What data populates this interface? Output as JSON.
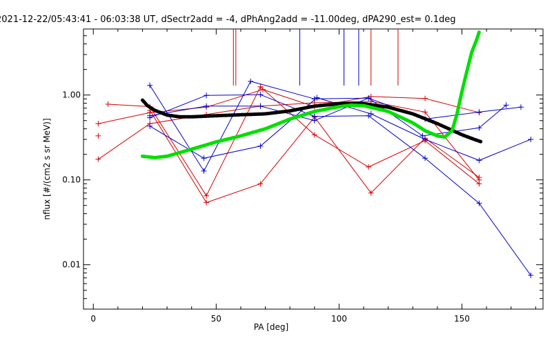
{
  "chart_data": {
    "type": "line",
    "title": "2021-12-22/05:43:41 - 06:03:38 UT, dSectr2add = -4, dPhAng2add = -11.00deg, dPA290_est=   0.1deg",
    "xlabel": "PA [deg]",
    "ylabel": "nflux [#/(cm2 s sr MeV)]",
    "xlim": [
      -4,
      183
    ],
    "ylim": [
      0.003,
      6.0
    ],
    "y_log": true,
    "grid": false,
    "x_ticks": [
      0,
      50,
      100,
      150
    ],
    "x_tick_labels": [
      "0",
      "50",
      "100",
      "150"
    ],
    "y_ticks": [
      0.01,
      0.1,
      1.0
    ],
    "y_tick_labels": [
      "0.01",
      "0.10",
      "1.00"
    ],
    "colors": {
      "red": "#d40000",
      "blue": "#0000cc",
      "black": "#000000",
      "green": "#00e000"
    },
    "markers": [
      {
        "color": "red",
        "x": 57
      },
      {
        "color": "red",
        "x": 58
      },
      {
        "color": "blue",
        "x": 84
      },
      {
        "color": "blue",
        "x": 102
      },
      {
        "color": "blue",
        "x": 108
      },
      {
        "color": "red",
        "x": 113
      },
      {
        "color": "red",
        "x": 124
      }
    ],
    "series": [
      {
        "color": "red",
        "points": [
          [
            2,
            0.46
          ],
          [
            23,
            0.62
          ],
          [
            46,
            0.72
          ],
          [
            69,
            1.16
          ],
          [
            90,
            0.73
          ],
          [
            113,
            0.96
          ],
          [
            135,
            0.91
          ],
          [
            157,
            0.62
          ]
        ]
      },
      {
        "color": "red",
        "points": [
          [
            2,
            0.175
          ],
          [
            23,
            0.46
          ],
          [
            46,
            0.59
          ],
          [
            68,
            0.74
          ],
          [
            90,
            0.81
          ],
          [
            113,
            0.84
          ],
          [
            135,
            0.63
          ],
          [
            157,
            0.1
          ]
        ]
      },
      {
        "color": "red",
        "points": [
          [
            6,
            0.78
          ],
          [
            23,
            0.73
          ],
          [
            46,
            0.065
          ],
          [
            68,
            1.25
          ],
          [
            90,
            0.34
          ],
          [
            112,
            0.142
          ],
          [
            135,
            0.29
          ],
          [
            157,
            0.09
          ]
        ]
      },
      {
        "color": "red",
        "points": [
          [
            23,
            0.66
          ],
          [
            46,
            0.054
          ],
          [
            68,
            0.09
          ],
          [
            90,
            0.55
          ],
          [
            113,
            0.07
          ],
          [
            135,
            0.31
          ],
          [
            157,
            0.107
          ]
        ]
      },
      {
        "color": "red",
        "points": [
          [
            2,
            0.33
          ]
        ]
      },
      {
        "color": "blue",
        "points": [
          [
            23,
            1.3
          ],
          [
            45,
            0.127
          ],
          [
            64,
            1.45
          ],
          [
            90,
            0.9
          ],
          [
            112,
            0.92
          ],
          [
            134,
            0.33
          ],
          [
            157,
            0.41
          ],
          [
            168,
            0.76
          ]
        ]
      },
      {
        "color": "blue",
        "points": [
          [
            23,
            0.54
          ],
          [
            46,
            0.99
          ],
          [
            68,
            1.01
          ],
          [
            90,
            0.56
          ],
          [
            112,
            0.57
          ],
          [
            135,
            0.18
          ],
          [
            157,
            0.053
          ],
          [
            178,
            0.0075
          ]
        ]
      },
      {
        "color": "blue",
        "points": [
          [
            23,
            0.43
          ],
          [
            45,
            0.18
          ],
          [
            68,
            0.25
          ],
          [
            91,
            0.93
          ],
          [
            113,
            0.6
          ],
          [
            135,
            0.3
          ],
          [
            157,
            0.17
          ],
          [
            178,
            0.3
          ]
        ]
      },
      {
        "color": "blue",
        "points": [
          [
            23,
            0.57
          ],
          [
            46,
            0.74
          ],
          [
            68,
            0.74
          ],
          [
            90,
            0.5
          ],
          [
            112,
            0.92
          ],
          [
            135,
            0.52
          ],
          [
            157,
            0.63
          ],
          [
            174,
            0.72
          ]
        ]
      }
    ],
    "fit_curves": [
      {
        "color": "black",
        "points": [
          [
            20,
            0.87
          ],
          [
            22,
            0.75
          ],
          [
            25,
            0.66
          ],
          [
            30,
            0.58
          ],
          [
            35,
            0.555
          ],
          [
            40,
            0.553
          ],
          [
            50,
            0.57
          ],
          [
            60,
            0.585
          ],
          [
            70,
            0.6
          ],
          [
            80,
            0.65
          ],
          [
            90,
            0.74
          ],
          [
            100,
            0.79
          ],
          [
            105,
            0.8
          ],
          [
            110,
            0.79
          ],
          [
            120,
            0.72
          ],
          [
            130,
            0.6
          ],
          [
            140,
            0.46
          ],
          [
            150,
            0.34
          ],
          [
            155,
            0.3
          ],
          [
            158,
            0.28
          ]
        ]
      },
      {
        "color": "green",
        "points": [
          [
            20,
            0.19
          ],
          [
            25,
            0.183
          ],
          [
            30,
            0.19
          ],
          [
            40,
            0.23
          ],
          [
            50,
            0.28
          ],
          [
            60,
            0.33
          ],
          [
            70,
            0.4
          ],
          [
            80,
            0.52
          ],
          [
            90,
            0.64
          ],
          [
            100,
            0.73
          ],
          [
            105,
            0.76
          ],
          [
            110,
            0.75
          ],
          [
            120,
            0.64
          ],
          [
            130,
            0.47
          ],
          [
            135,
            0.38
          ],
          [
            140,
            0.33
          ],
          [
            143,
            0.32
          ],
          [
            146,
            0.38
          ],
          [
            148,
            0.6
          ],
          [
            150,
            1.1
          ],
          [
            152,
            1.9
          ],
          [
            154,
            3.2
          ],
          [
            156,
            4.5
          ],
          [
            157,
            5.5
          ]
        ]
      }
    ]
  }
}
